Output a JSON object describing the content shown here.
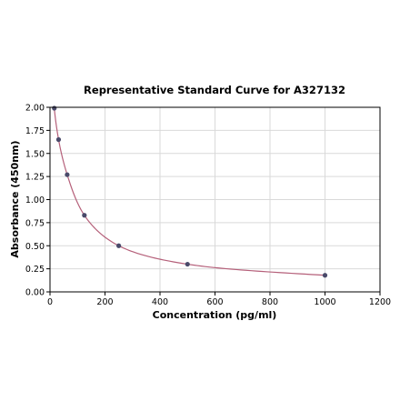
{
  "chart_data": {
    "type": "scatter",
    "title": "Representative Standard Curve for A327132",
    "xlabel": "Concentration (pg/ml)",
    "ylabel": "Absorbance (450nm)",
    "xlim": [
      0,
      1200
    ],
    "ylim": [
      0,
      2.0
    ],
    "x_ticks": [
      0,
      200,
      400,
      600,
      800,
      1000,
      1200
    ],
    "y_ticks": [
      0.0,
      0.25,
      0.5,
      0.75,
      1.0,
      1.25,
      1.5,
      1.75,
      2.0
    ],
    "x_tick_labels": [
      "0",
      "200",
      "400",
      "600",
      "800",
      "1000",
      "1200"
    ],
    "y_tick_labels": [
      "0.00",
      "0.25",
      "0.50",
      "0.75",
      "1.00",
      "1.25",
      "1.50",
      "1.75",
      "2.00"
    ],
    "grid": true,
    "series": [
      {
        "x": [
          15.6,
          31.25,
          62.5,
          125,
          250,
          500,
          1000
        ],
        "y": [
          1.99,
          1.65,
          1.27,
          0.83,
          0.5,
          0.3,
          0.18
        ],
        "marker_color": "#4a4a6a",
        "curve_color": "#b5607a"
      }
    ]
  }
}
